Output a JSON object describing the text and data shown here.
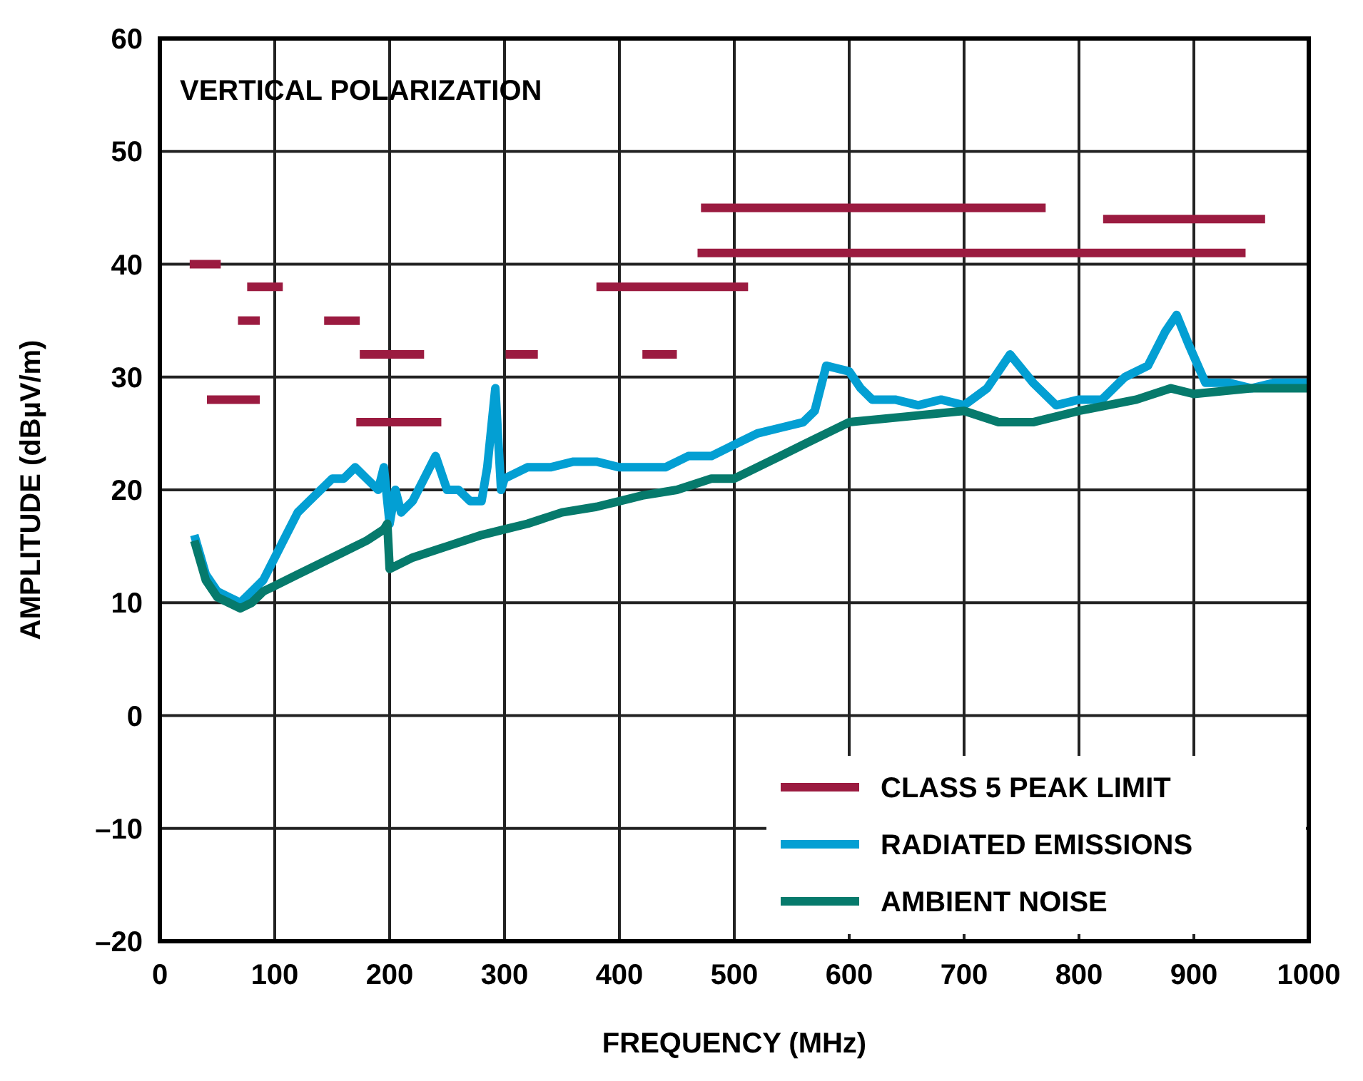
{
  "chart_data": {
    "type": "line",
    "title": "VERTICAL POLARIZATION",
    "xlabel": "FREQUENCY (MHz)",
    "ylabel": "AMPLITUDE (dBµV/m)",
    "xlim": [
      0,
      1000
    ],
    "xticks": [
      0,
      100,
      200,
      300,
      400,
      500,
      600,
      700,
      800,
      900,
      1000
    ],
    "ylim": [
      -20,
      60
    ],
    "yticks": [
      {
        "value": -20,
        "label": "–20"
      },
      {
        "value": -10,
        "label": "–10"
      },
      0,
      10,
      20,
      30,
      40,
      50,
      60
    ],
    "grid": true,
    "legend": "bottom right",
    "line_style": "solid",
    "marker": "none",
    "series": [
      {
        "name": "CLASS 5 PEAK LIMIT",
        "color": "#9b1b40",
        "x": [
          26,
          53
        ],
        "values": [
          40,
          40
        ]
      },
      {
        "color": "#9b1b40",
        "x": [
          41,
          87
        ],
        "values": [
          28,
          28
        ]
      },
      {
        "color": "#9b1b40",
        "x": [
          68,
          87
        ],
        "values": [
          35,
          35
        ]
      },
      {
        "color": "#9b1b40",
        "x": [
          76,
          107
        ],
        "values": [
          38,
          38
        ]
      },
      {
        "color": "#9b1b40",
        "x": [
          143,
          174
        ],
        "values": [
          35,
          35
        ]
      },
      {
        "color": "#9b1b40",
        "x": [
          174,
          230
        ],
        "values": [
          32,
          32
        ]
      },
      {
        "color": "#9b1b40",
        "x": [
          171,
          245
        ],
        "values": [
          26,
          26
        ]
      },
      {
        "color": "#9b1b40",
        "x": [
          301,
          329
        ],
        "values": [
          32,
          32
        ]
      },
      {
        "color": "#9b1b40",
        "x": [
          380,
          512
        ],
        "values": [
          38,
          38
        ]
      },
      {
        "color": "#9b1b40",
        "x": [
          420,
          450
        ],
        "values": [
          32,
          32
        ]
      },
      {
        "color": "#9b1b40",
        "x": [
          471,
          771
        ],
        "values": [
          45,
          45
        ]
      },
      {
        "color": "#9b1b40",
        "x": [
          468,
          945
        ],
        "values": [
          41,
          41
        ]
      },
      {
        "color": "#9b1b40",
        "x": [
          821,
          962
        ],
        "values": [
          44,
          44
        ]
      },
      {
        "name": "RADIATED EMISSIONS",
        "color": "#039fd3",
        "x": [
          30,
          40,
          50,
          60,
          70,
          80,
          90,
          100,
          110,
          120,
          130,
          140,
          150,
          160,
          170,
          180,
          190,
          195,
          200,
          205,
          210,
          220,
          230,
          240,
          250,
          260,
          270,
          280,
          285,
          292,
          297,
          300,
          320,
          340,
          360,
          380,
          400,
          420,
          440,
          460,
          480,
          500,
          520,
          540,
          560,
          570,
          580,
          600,
          610,
          620,
          640,
          660,
          680,
          700,
          720,
          740,
          760,
          780,
          800,
          820,
          840,
          860,
          875,
          885,
          895,
          910,
          930,
          950,
          970,
          1000
        ],
        "values": [
          16,
          12.5,
          11,
          10.5,
          10,
          11,
          12,
          14,
          16,
          18,
          19,
          20,
          21,
          21,
          22,
          21,
          20,
          22,
          17,
          20,
          18,
          19,
          21,
          23,
          20,
          20,
          19,
          19,
          22,
          29,
          20,
          21,
          22,
          22,
          22.5,
          22.5,
          22,
          22,
          22,
          23,
          23,
          24,
          25,
          25.5,
          26,
          27,
          31,
          30.5,
          29,
          28,
          28,
          27.5,
          28,
          27.5,
          29,
          32,
          29.5,
          27.5,
          28,
          28,
          30,
          31,
          34,
          35.5,
          33,
          29.5,
          29.5,
          29,
          29.5,
          29.5
        ]
      },
      {
        "name": "AMBIENT NOISE",
        "color": "#067a6c",
        "x": [
          30,
          40,
          50,
          60,
          70,
          80,
          90,
          100,
          120,
          140,
          160,
          180,
          195,
          198,
          200,
          220,
          250,
          280,
          300,
          320,
          350,
          380,
          400,
          420,
          450,
          480,
          500,
          520,
          540,
          560,
          580,
          600,
          650,
          700,
          730,
          760,
          800,
          850,
          880,
          900,
          950,
          1000
        ],
        "values": [
          15.5,
          12,
          10.5,
          10,
          9.5,
          10,
          11,
          11.5,
          12.5,
          13.5,
          14.5,
          15.5,
          16.5,
          17,
          13,
          14,
          15,
          16,
          16.5,
          17,
          18,
          18.5,
          19,
          19.5,
          20,
          21,
          21,
          22,
          23,
          24,
          25,
          26,
          26.5,
          27,
          26,
          26,
          27,
          28,
          29,
          28.5,
          29,
          29
        ]
      }
    ]
  }
}
